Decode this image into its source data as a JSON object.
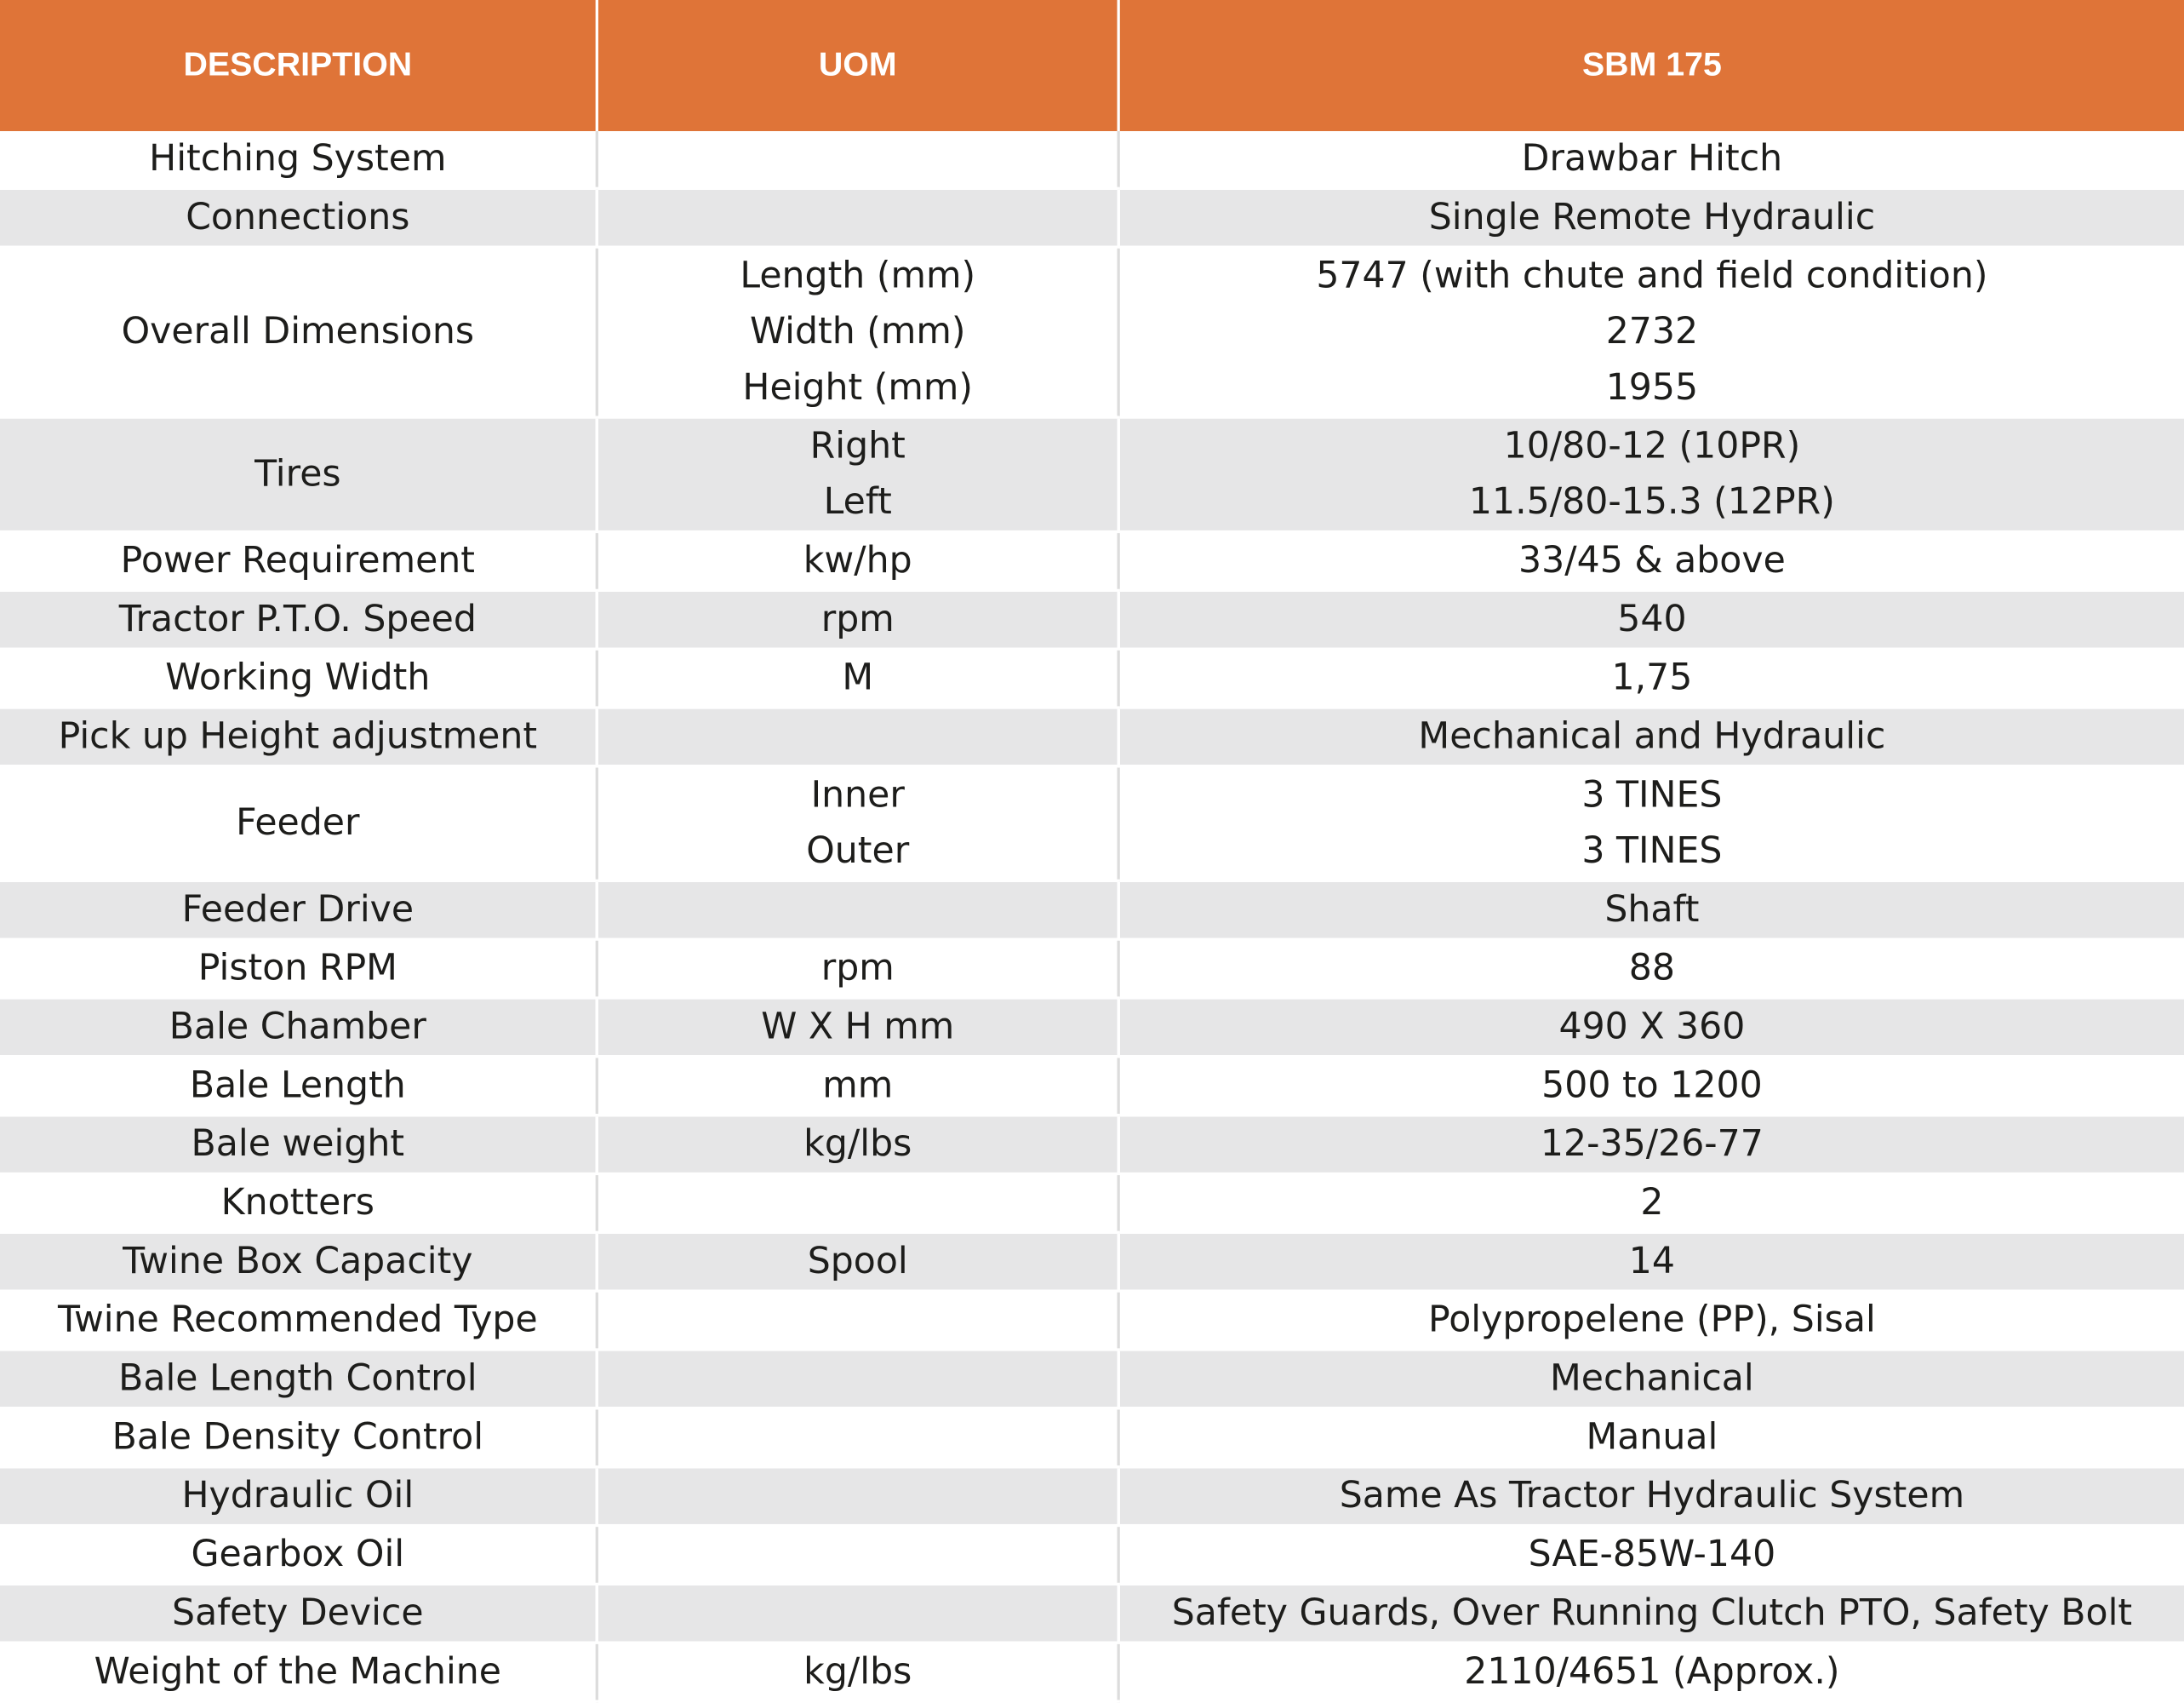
{
  "table": {
    "headers": [
      "DESCRIPTION",
      "UOM",
      "SBM 175"
    ],
    "colors": {
      "header_bg": "#df7438",
      "header_text": "#ffffff",
      "row_shade": "#e6e6e7",
      "row_plain": "#ffffff"
    },
    "rows": [
      {
        "description": "Hitching System",
        "uom": [
          ""
        ],
        "value": [
          "Drawbar Hitch"
        ]
      },
      {
        "description": "Connections",
        "uom": [
          ""
        ],
        "value": [
          "Single Remote Hydraulic"
        ]
      },
      {
        "description": "Overall Dimensions",
        "uom": [
          "Length (mm)",
          "Width (mm)",
          "Height (mm)"
        ],
        "value": [
          "5747 (with chute and field condition)",
          "2732",
          "1955"
        ]
      },
      {
        "description": "Tires",
        "uom": [
          "Right",
          "Left"
        ],
        "value": [
          "10/80-12 (10PR)",
          "11.5/80-15.3 (12PR)"
        ]
      },
      {
        "description": "Power Requirement",
        "uom": [
          "kw/hp"
        ],
        "value": [
          "33/45 & above"
        ]
      },
      {
        "description": "Tractor P.T.O. Speed",
        "uom": [
          "rpm"
        ],
        "value": [
          "540"
        ]
      },
      {
        "description": "Working Width",
        "uom": [
          "M"
        ],
        "value": [
          "1,75"
        ]
      },
      {
        "description": "Pick up Height adjustment",
        "uom": [
          ""
        ],
        "value": [
          "Mechanical and Hydraulic"
        ]
      },
      {
        "description": "Feeder",
        "uom": [
          "Inner",
          "Outer"
        ],
        "value": [
          "3 TINES",
          "3 TINES"
        ]
      },
      {
        "description": "Feeder Drive",
        "uom": [
          ""
        ],
        "value": [
          "Shaft"
        ]
      },
      {
        "description": "Piston RPM",
        "uom": [
          "rpm"
        ],
        "value": [
          "88"
        ]
      },
      {
        "description": "Bale Chamber",
        "uom": [
          "W X H mm"
        ],
        "value": [
          "490  X 360"
        ]
      },
      {
        "description": "Bale Length",
        "uom": [
          "mm"
        ],
        "value": [
          "500 to 1200"
        ]
      },
      {
        "description": "Bale weight",
        "uom": [
          "kg/lbs"
        ],
        "value": [
          "12-35/26-77"
        ]
      },
      {
        "description": "Knotters",
        "uom": [
          ""
        ],
        "value": [
          "2"
        ]
      },
      {
        "description": "Twine Box Capacity",
        "uom": [
          "Spool"
        ],
        "value": [
          "14"
        ]
      },
      {
        "description": "Twine Recommended Type",
        "uom": [
          ""
        ],
        "value": [
          "Polypropelene (PP), Sisal"
        ]
      },
      {
        "description": "Bale Length Control",
        "uom": [
          ""
        ],
        "value": [
          "Mechanical"
        ]
      },
      {
        "description": "Bale Density Control",
        "uom": [
          ""
        ],
        "value": [
          "Manual"
        ]
      },
      {
        "description": "Hydraulic Oil",
        "uom": [
          ""
        ],
        "value": [
          "Same As Tractor Hydraulic System"
        ]
      },
      {
        "description": "Gearbox Oil",
        "uom": [
          ""
        ],
        "value": [
          "SAE-85W-140"
        ]
      },
      {
        "description": "Safety Device",
        "uom": [
          ""
        ],
        "value": [
          "Safety Guards, Over Running Clutch PTO, Safety Bolt"
        ]
      },
      {
        "description": "Weight of the Machine",
        "uom": [
          "kg/lbs"
        ],
        "value": [
          "2110/4651 (Approx.)"
        ]
      }
    ]
  }
}
